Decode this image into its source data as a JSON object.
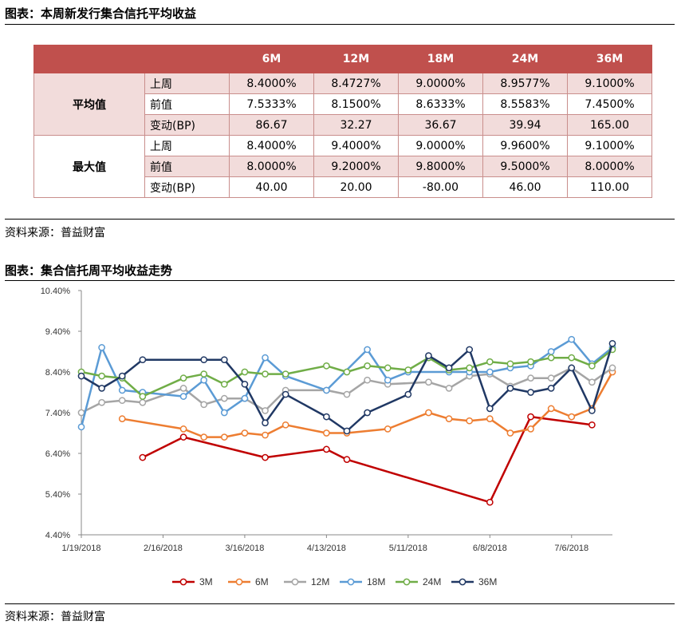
{
  "table_section": {
    "title": "图表：本周新发行集合信托平均收益",
    "columns": [
      "",
      "",
      "6M",
      "12M",
      "18M",
      "24M",
      "36M"
    ],
    "groups": [
      {
        "label": "平均值",
        "rows": [
          {
            "label": "上周",
            "values": [
              "8.4000%",
              "8.4727%",
              "9.0000%",
              "8.9577%",
              "9.1000%"
            ]
          },
          {
            "label": "前值",
            "values": [
              "7.5333%",
              "8.1500%",
              "8.6333%",
              "8.5583%",
              "7.4500%"
            ]
          },
          {
            "label": "变动(BP)",
            "values": [
              "86.67",
              "32.27",
              "36.67",
              "39.94",
              "165.00"
            ]
          }
        ]
      },
      {
        "label": "最大值",
        "rows": [
          {
            "label": "上周",
            "values": [
              "8.4000%",
              "9.4000%",
              "9.0000%",
              "9.9600%",
              "9.1000%"
            ]
          },
          {
            "label": "前值",
            "values": [
              "8.0000%",
              "9.2000%",
              "9.8000%",
              "9.5000%",
              "8.0000%"
            ]
          },
          {
            "label": "变动(BP)",
            "values": [
              "40.00",
              "20.00",
              "-80.00",
              "46.00",
              "110.00"
            ]
          }
        ]
      }
    ],
    "source": "资料来源：普益财富"
  },
  "chart_section": {
    "title": "图表：集合信托周平均收益走势",
    "source": "资料来源：普益财富"
  },
  "chart_data": {
    "type": "line",
    "title": "",
    "xlabel": "",
    "ylabel": "",
    "ylim": [
      4.4,
      10.4
    ],
    "yticks": [
      "4.40%",
      "5.40%",
      "6.40%",
      "7.40%",
      "8.40%",
      "9.40%",
      "10.40%"
    ],
    "ytick_values": [
      4.4,
      5.4,
      6.4,
      7.4,
      8.4,
      9.4,
      10.4
    ],
    "xtick_labels": [
      "1/19/2018",
      "2/16/2018",
      "3/16/2018",
      "4/13/2018",
      "5/11/2018",
      "6/8/2018",
      "7/6/2018"
    ],
    "xtick_weeks": [
      0,
      4,
      8,
      12,
      16,
      20,
      24
    ],
    "x_max_week": 26,
    "legend_position": "bottom",
    "grid": "none",
    "series": [
      {
        "name": "3M",
        "color": "#c00000",
        "points": [
          [
            3,
            6.3
          ],
          [
            5,
            6.8
          ],
          [
            9,
            6.3
          ],
          [
            12,
            6.5
          ],
          [
            13,
            6.25
          ],
          [
            20,
            5.2
          ],
          [
            22,
            7.3
          ],
          [
            25,
            7.1
          ]
        ]
      },
      {
        "name": "6M",
        "color": "#ed7d31",
        "points": [
          [
            2,
            7.25
          ],
          [
            5,
            7.0
          ],
          [
            6,
            6.8
          ],
          [
            7,
            6.8
          ],
          [
            8,
            6.9
          ],
          [
            9,
            6.85
          ],
          [
            10,
            7.1
          ],
          [
            12,
            6.9
          ],
          [
            13,
            6.9
          ],
          [
            15,
            7.0
          ],
          [
            17,
            7.4
          ],
          [
            18,
            7.25
          ],
          [
            19,
            7.2
          ],
          [
            20,
            7.25
          ],
          [
            21,
            6.9
          ],
          [
            22,
            7.0
          ],
          [
            23,
            7.5
          ],
          [
            24,
            7.3
          ],
          [
            25,
            7.5
          ],
          [
            26,
            8.4
          ]
        ]
      },
      {
        "name": "12M",
        "color": "#a5a5a5",
        "points": [
          [
            0,
            7.4
          ],
          [
            1,
            7.65
          ],
          [
            2,
            7.7
          ],
          [
            3,
            7.65
          ],
          [
            5,
            8.0
          ],
          [
            6,
            7.6
          ],
          [
            7,
            7.75
          ],
          [
            8,
            7.75
          ],
          [
            9,
            7.45
          ],
          [
            10,
            7.95
          ],
          [
            12,
            7.95
          ],
          [
            13,
            7.85
          ],
          [
            14,
            8.2
          ],
          [
            15,
            8.1
          ],
          [
            17,
            8.15
          ],
          [
            18,
            8.0
          ],
          [
            19,
            8.3
          ],
          [
            20,
            8.35
          ],
          [
            21,
            8.05
          ],
          [
            22,
            8.25
          ],
          [
            23,
            8.25
          ],
          [
            24,
            8.5
          ],
          [
            25,
            8.15
          ],
          [
            26,
            8.5
          ]
        ]
      },
      {
        "name": "18M",
        "color": "#5b9bd5",
        "points": [
          [
            0,
            7.05
          ],
          [
            1,
            9.0
          ],
          [
            2,
            7.95
          ],
          [
            3,
            7.9
          ],
          [
            5,
            7.8
          ],
          [
            6,
            8.2
          ],
          [
            7,
            7.4
          ],
          [
            8,
            7.75
          ],
          [
            9,
            8.75
          ],
          [
            10,
            8.3
          ],
          [
            12,
            7.95
          ],
          [
            14,
            8.95
          ],
          [
            15,
            8.2
          ],
          [
            16,
            8.4
          ],
          [
            18,
            8.4
          ],
          [
            19,
            8.4
          ],
          [
            20,
            8.4
          ],
          [
            21,
            8.5
          ],
          [
            22,
            8.55
          ],
          [
            23,
            8.9
          ],
          [
            24,
            9.2
          ],
          [
            25,
            8.6
          ],
          [
            26,
            9.0
          ]
        ]
      },
      {
        "name": "24M",
        "color": "#70ad47",
        "points": [
          [
            0,
            8.4
          ],
          [
            1,
            8.3
          ],
          [
            2,
            8.25
          ],
          [
            3,
            7.8
          ],
          [
            5,
            8.25
          ],
          [
            6,
            8.35
          ],
          [
            7,
            8.1
          ],
          [
            8,
            8.4
          ],
          [
            9,
            8.35
          ],
          [
            10,
            8.35
          ],
          [
            12,
            8.55
          ],
          [
            13,
            8.4
          ],
          [
            14,
            8.55
          ],
          [
            15,
            8.5
          ],
          [
            16,
            8.45
          ],
          [
            17,
            8.75
          ],
          [
            18,
            8.45
          ],
          [
            19,
            8.5
          ],
          [
            20,
            8.65
          ],
          [
            21,
            8.6
          ],
          [
            22,
            8.65
          ],
          [
            23,
            8.75
          ],
          [
            24,
            8.75
          ],
          [
            25,
            8.55
          ],
          [
            26,
            8.95
          ]
        ]
      },
      {
        "name": "36M",
        "color": "#203864",
        "points": [
          [
            0,
            8.3
          ],
          [
            1,
            8.0
          ],
          [
            2,
            8.3
          ],
          [
            3,
            8.7
          ],
          [
            6,
            8.7
          ],
          [
            7,
            8.7
          ],
          [
            8,
            8.1
          ],
          [
            9,
            7.15
          ],
          [
            10,
            7.85
          ],
          [
            12,
            7.3
          ],
          [
            13,
            6.95
          ],
          [
            14,
            7.4
          ],
          [
            16,
            7.85
          ],
          [
            17,
            8.8
          ],
          [
            18,
            8.5
          ],
          [
            19,
            8.95
          ],
          [
            20,
            7.5
          ],
          [
            21,
            8.0
          ],
          [
            22,
            7.9
          ],
          [
            23,
            8.0
          ],
          [
            24,
            8.5
          ],
          [
            25,
            7.45
          ],
          [
            26,
            9.1
          ]
        ]
      }
    ]
  }
}
